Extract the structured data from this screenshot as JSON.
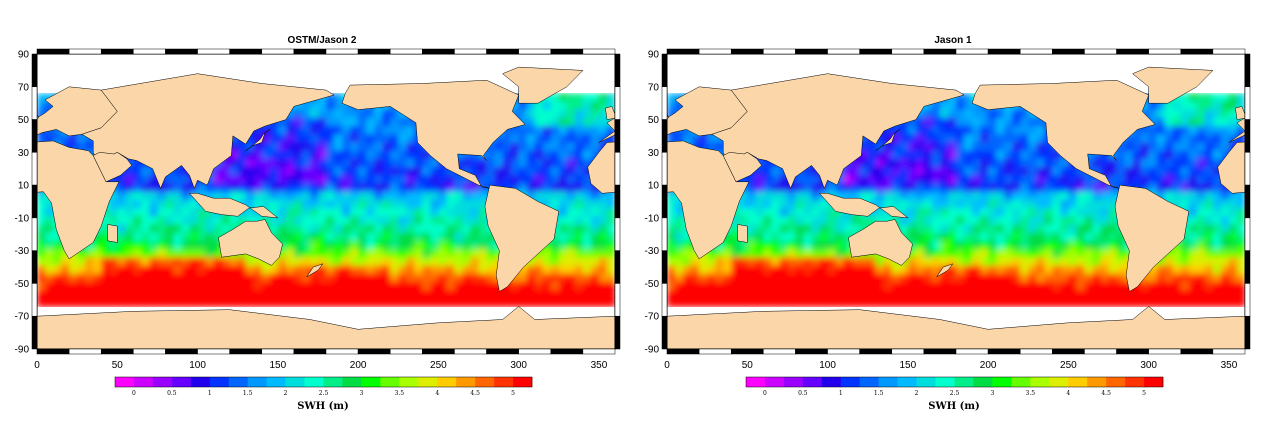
{
  "panels": [
    {
      "title": "OSTM/Jason 2"
    },
    {
      "title": "Jason 1"
    }
  ],
  "axes": {
    "x_ticks": [
      0,
      50,
      100,
      150,
      200,
      250,
      300,
      350
    ],
    "y_ticks": [
      90,
      70,
      50,
      30,
      10,
      -10,
      -30,
      -50,
      -70,
      -90
    ],
    "x_range": [
      0,
      360
    ],
    "y_range": [
      -90,
      90
    ]
  },
  "colorbar": {
    "label": "SWH (m)",
    "tick_labels": [
      "0",
      "0.5",
      "1",
      "1.5",
      "2",
      "2.5",
      "3",
      "3.5",
      "4",
      "4.5",
      "5"
    ],
    "colors": [
      "#ff00ff",
      "#cc00ff",
      "#9900ff",
      "#6600ff",
      "#2200ee",
      "#0033ff",
      "#0066ff",
      "#0099ff",
      "#00bbff",
      "#00dddd",
      "#00ffcc",
      "#00ee88",
      "#00dd44",
      "#00ff00",
      "#66ff00",
      "#aaff00",
      "#ddee00",
      "#ffcc00",
      "#ff9900",
      "#ff6600",
      "#ff3300",
      "#ff0000"
    ]
  },
  "land_color": "#fbd6a8"
}
